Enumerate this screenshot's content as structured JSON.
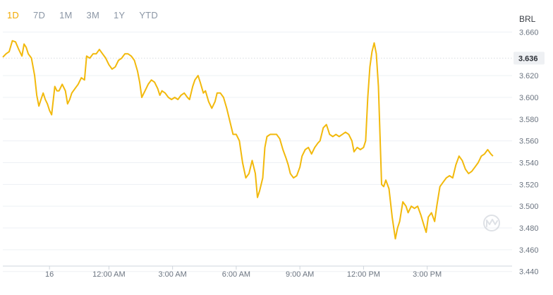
{
  "range_tabs": [
    {
      "label": "1D",
      "active": true
    },
    {
      "label": "7D",
      "active": false
    },
    {
      "label": "1M",
      "active": false
    },
    {
      "label": "3M",
      "active": false
    },
    {
      "label": "1Y",
      "active": false
    },
    {
      "label": "YTD",
      "active": false
    }
  ],
  "currency": "BRL",
  "current_value_label": "3.636",
  "logo_icon": "coinmarketcap-watermark-icon",
  "colors": {
    "line": "#f2b90c",
    "active_tab": "#f2a900",
    "grid": "#edf0f4",
    "current_marker_bg": "#eef0f3"
  },
  "chart_data": {
    "type": "line",
    "title": "",
    "xlabel": "",
    "ylabel": "",
    "ylim": [
      3.445,
      3.67
    ],
    "xlim": [
      0,
      24
    ],
    "grid": true,
    "y_ticks": [
      {
        "value": 3.66,
        "label": "3.660"
      },
      {
        "value": 3.62,
        "label": "3.620"
      },
      {
        "value": 3.6,
        "label": "3.600"
      },
      {
        "value": 3.58,
        "label": "3.580"
      },
      {
        "value": 3.56,
        "label": "3.560"
      },
      {
        "value": 3.54,
        "label": "3.540"
      },
      {
        "value": 3.52,
        "label": "3.520"
      },
      {
        "value": 3.5,
        "label": "3.500"
      },
      {
        "value": 3.48,
        "label": "3.480"
      },
      {
        "value": 3.46,
        "label": "3.460"
      },
      {
        "value": 3.44,
        "label": "3.440"
      }
    ],
    "x_ticks": [
      {
        "value": 2.2,
        "label": "16"
      },
      {
        "value": 5.0,
        "label": "12:00 AM"
      },
      {
        "value": 8.0,
        "label": "3:00 AM"
      },
      {
        "value": 11.0,
        "label": "6:00 AM"
      },
      {
        "value": 14.0,
        "label": "9:00 AM"
      },
      {
        "value": 17.0,
        "label": "12:00 PM"
      },
      {
        "value": 20.0,
        "label": "3:00 PM"
      }
    ],
    "current_value": 3.636,
    "series": [
      {
        "points": [
          [
            0.0,
            3.637
          ],
          [
            0.15,
            3.64
          ],
          [
            0.3,
            3.642
          ],
          [
            0.45,
            3.652
          ],
          [
            0.6,
            3.651
          ],
          [
            0.75,
            3.644
          ],
          [
            0.9,
            3.638
          ],
          [
            1.0,
            3.649
          ],
          [
            1.1,
            3.646
          ],
          [
            1.2,
            3.64
          ],
          [
            1.35,
            3.636
          ],
          [
            1.5,
            3.62
          ],
          [
            1.6,
            3.602
          ],
          [
            1.7,
            3.592
          ],
          [
            1.8,
            3.598
          ],
          [
            1.9,
            3.604
          ],
          [
            2.0,
            3.598
          ],
          [
            2.1,
            3.594
          ],
          [
            2.2,
            3.588
          ],
          [
            2.3,
            3.584
          ],
          [
            2.45,
            3.61
          ],
          [
            2.55,
            3.606
          ],
          [
            2.65,
            3.606
          ],
          [
            2.8,
            3.612
          ],
          [
            2.95,
            3.606
          ],
          [
            3.05,
            3.594
          ],
          [
            3.15,
            3.598
          ],
          [
            3.25,
            3.604
          ],
          [
            3.4,
            3.608
          ],
          [
            3.55,
            3.612
          ],
          [
            3.7,
            3.618
          ],
          [
            3.85,
            3.616
          ],
          [
            3.95,
            3.638
          ],
          [
            4.1,
            3.636
          ],
          [
            4.25,
            3.64
          ],
          [
            4.4,
            3.64
          ],
          [
            4.55,
            3.644
          ],
          [
            4.7,
            3.64
          ],
          [
            4.85,
            3.636
          ],
          [
            5.0,
            3.63
          ],
          [
            5.15,
            3.626
          ],
          [
            5.3,
            3.628
          ],
          [
            5.45,
            3.634
          ],
          [
            5.6,
            3.636
          ],
          [
            5.75,
            3.64
          ],
          [
            5.9,
            3.64
          ],
          [
            6.05,
            3.638
          ],
          [
            6.2,
            3.634
          ],
          [
            6.35,
            3.624
          ],
          [
            6.45,
            3.614
          ],
          [
            6.55,
            3.6
          ],
          [
            6.7,
            3.606
          ],
          [
            6.85,
            3.612
          ],
          [
            7.0,
            3.616
          ],
          [
            7.15,
            3.614
          ],
          [
            7.3,
            3.608
          ],
          [
            7.4,
            3.602
          ],
          [
            7.5,
            3.606
          ],
          [
            7.65,
            3.604
          ],
          [
            7.8,
            3.6
          ],
          [
            7.95,
            3.598
          ],
          [
            8.1,
            3.6
          ],
          [
            8.25,
            3.598
          ],
          [
            8.4,
            3.602
          ],
          [
            8.55,
            3.604
          ],
          [
            8.7,
            3.6
          ],
          [
            8.8,
            3.598
          ],
          [
            8.95,
            3.61
          ],
          [
            9.05,
            3.616
          ],
          [
            9.2,
            3.62
          ],
          [
            9.3,
            3.614
          ],
          [
            9.45,
            3.604
          ],
          [
            9.55,
            3.606
          ],
          [
            9.7,
            3.596
          ],
          [
            9.85,
            3.59
          ],
          [
            10.0,
            3.596
          ],
          [
            10.1,
            3.604
          ],
          [
            10.25,
            3.604
          ],
          [
            10.4,
            3.6
          ],
          [
            10.55,
            3.59
          ],
          [
            10.7,
            3.578
          ],
          [
            10.85,
            3.566
          ],
          [
            11.0,
            3.566
          ],
          [
            11.15,
            3.56
          ],
          [
            11.3,
            3.54
          ],
          [
            11.45,
            3.526
          ],
          [
            11.6,
            3.53
          ],
          [
            11.75,
            3.542
          ],
          [
            11.9,
            3.53
          ],
          [
            12.0,
            3.508
          ],
          [
            12.1,
            3.514
          ],
          [
            12.25,
            3.526
          ],
          [
            12.35,
            3.554
          ],
          [
            12.45,
            3.564
          ],
          [
            12.6,
            3.566
          ],
          [
            12.75,
            3.566
          ],
          [
            12.9,
            3.566
          ],
          [
            13.05,
            3.562
          ],
          [
            13.2,
            3.552
          ],
          [
            13.35,
            3.544
          ],
          [
            13.45,
            3.538
          ],
          [
            13.55,
            3.53
          ],
          [
            13.7,
            3.526
          ],
          [
            13.85,
            3.528
          ],
          [
            14.0,
            3.536
          ],
          [
            14.1,
            3.546
          ],
          [
            14.25,
            3.552
          ],
          [
            14.4,
            3.554
          ],
          [
            14.55,
            3.548
          ],
          [
            14.7,
            3.554
          ],
          [
            14.85,
            3.558
          ],
          [
            14.95,
            3.56
          ],
          [
            15.1,
            3.572
          ],
          [
            15.25,
            3.575
          ],
          [
            15.4,
            3.566
          ],
          [
            15.55,
            3.564
          ],
          [
            15.7,
            3.566
          ],
          [
            15.85,
            3.564
          ],
          [
            16.0,
            3.566
          ],
          [
            16.15,
            3.568
          ],
          [
            16.3,
            3.566
          ],
          [
            16.45,
            3.56
          ],
          [
            16.55,
            3.55
          ],
          [
            16.7,
            3.554
          ],
          [
            16.85,
            3.552
          ],
          [
            17.0,
            3.554
          ],
          [
            17.1,
            3.56
          ],
          [
            17.2,
            3.6
          ],
          [
            17.3,
            3.628
          ],
          [
            17.4,
            3.642
          ],
          [
            17.5,
            3.65
          ],
          [
            17.6,
            3.64
          ],
          [
            17.7,
            3.61
          ],
          [
            17.85,
            3.52
          ],
          [
            17.95,
            3.518
          ],
          [
            18.05,
            3.524
          ],
          [
            18.2,
            3.516
          ],
          [
            18.35,
            3.49
          ],
          [
            18.5,
            3.47
          ],
          [
            18.6,
            3.48
          ],
          [
            18.7,
            3.486
          ],
          [
            18.85,
            3.504
          ],
          [
            19.0,
            3.5
          ],
          [
            19.1,
            3.494
          ],
          [
            19.25,
            3.5
          ],
          [
            19.4,
            3.498
          ],
          [
            19.55,
            3.5
          ],
          [
            19.7,
            3.492
          ],
          [
            19.85,
            3.482
          ],
          [
            19.95,
            3.476
          ],
          [
            20.05,
            3.49
          ],
          [
            20.2,
            3.494
          ],
          [
            20.35,
            3.486
          ],
          [
            20.45,
            3.5
          ],
          [
            20.6,
            3.518
          ],
          [
            20.75,
            3.522
          ],
          [
            20.9,
            3.526
          ],
          [
            21.05,
            3.528
          ],
          [
            21.2,
            3.526
          ],
          [
            21.35,
            3.538
          ],
          [
            21.5,
            3.546
          ],
          [
            21.65,
            3.542
          ],
          [
            21.8,
            3.534
          ],
          [
            21.95,
            3.53
          ],
          [
            22.1,
            3.532
          ],
          [
            22.25,
            3.536
          ],
          [
            22.4,
            3.54
          ],
          [
            22.55,
            3.546
          ],
          [
            22.7,
            3.548
          ],
          [
            22.85,
            3.552
          ],
          [
            23.0,
            3.548
          ],
          [
            23.1,
            3.546
          ]
        ]
      }
    ]
  }
}
